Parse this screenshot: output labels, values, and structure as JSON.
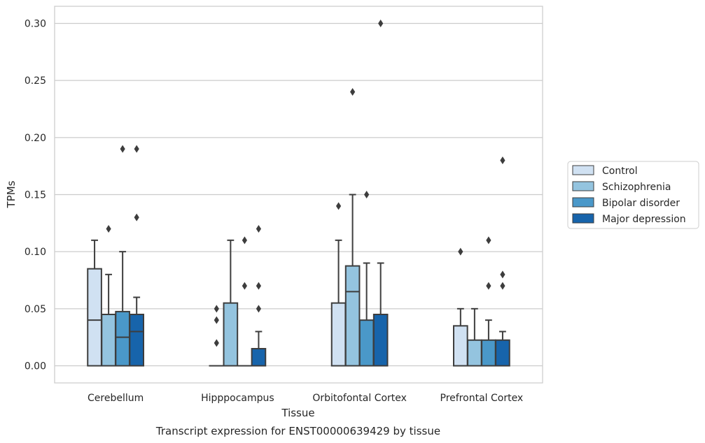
{
  "chart_data": {
    "type": "box",
    "title": "Transcript expression for ENST00000639429 by tissue",
    "xlabel": "Tissue",
    "ylabel": "TPMs",
    "ylim": [
      -0.015,
      0.315
    ],
    "yticks": [
      0.0,
      0.05,
      0.1,
      0.15,
      0.2,
      0.25,
      0.3
    ],
    "ytick_labels": [
      "0.00",
      "0.05",
      "0.10",
      "0.15",
      "0.20",
      "0.25",
      "0.30"
    ],
    "categories": [
      "Cerebellum",
      "Hipppocampus",
      "Orbitofontal Cortex",
      "Prefrontal Cortex"
    ],
    "grid": "horizontal",
    "legend_position": "right-center",
    "series": [
      {
        "name": "Control",
        "color": "#d0e1f2",
        "boxes": [
          {
            "q1": 0.0,
            "median": 0.04,
            "q3": 0.085,
            "whislo": 0.0,
            "whishi": 0.11,
            "fliers": []
          },
          {
            "q1": 0.0,
            "median": 0.0,
            "q3": 0.0,
            "whislo": 0.0,
            "whishi": 0.0,
            "fliers": [
              0.02,
              0.04,
              0.05
            ]
          },
          {
            "q1": 0.0,
            "median": 0.0,
            "q3": 0.055,
            "whislo": 0.0,
            "whishi": 0.11,
            "fliers": [
              0.14
            ]
          },
          {
            "q1": 0.0,
            "median": 0.0,
            "q3": 0.035,
            "whislo": 0.0,
            "whishi": 0.05,
            "fliers": [
              0.1
            ]
          }
        ]
      },
      {
        "name": "Schizophrenia",
        "color": "#94c4df",
        "boxes": [
          {
            "q1": 0.0,
            "median": 0.0,
            "q3": 0.045,
            "whislo": 0.0,
            "whishi": 0.08,
            "fliers": [
              0.12
            ]
          },
          {
            "q1": 0.0,
            "median": 0.0,
            "q3": 0.055,
            "whislo": 0.0,
            "whishi": 0.11,
            "fliers": []
          },
          {
            "q1": 0.0,
            "median": 0.065,
            "q3": 0.0875,
            "whislo": 0.0,
            "whishi": 0.15,
            "fliers": [
              0.24
            ]
          },
          {
            "q1": 0.0,
            "median": 0.0,
            "q3": 0.0225,
            "whislo": 0.0,
            "whishi": 0.05,
            "fliers": []
          }
        ]
      },
      {
        "name": "Bipolar disorder",
        "color": "#4a98c9",
        "boxes": [
          {
            "q1": 0.0,
            "median": 0.025,
            "q3": 0.0475,
            "whislo": 0.0,
            "whishi": 0.1,
            "fliers": [
              0.19
            ]
          },
          {
            "q1": 0.0,
            "median": 0.0,
            "q3": 0.0,
            "whislo": 0.0,
            "whishi": 0.0,
            "fliers": [
              0.07,
              0.11
            ]
          },
          {
            "q1": 0.0,
            "median": 0.0,
            "q3": 0.04,
            "whislo": 0.0,
            "whishi": 0.09,
            "fliers": [
              0.15
            ]
          },
          {
            "q1": 0.0,
            "median": 0.0,
            "q3": 0.0225,
            "whislo": 0.0,
            "whishi": 0.04,
            "fliers": [
              0.07,
              0.11
            ]
          }
        ]
      },
      {
        "name": "Major depression",
        "color": "#1764ab",
        "boxes": [
          {
            "q1": 0.0,
            "median": 0.03,
            "q3": 0.045,
            "whislo": 0.0,
            "whishi": 0.06,
            "fliers": [
              0.13,
              0.19
            ]
          },
          {
            "q1": 0.0,
            "median": 0.0,
            "q3": 0.015,
            "whislo": 0.0,
            "whishi": 0.03,
            "fliers": [
              0.05,
              0.07,
              0.12
            ]
          },
          {
            "q1": 0.0,
            "median": 0.0,
            "q3": 0.045,
            "whislo": 0.0,
            "whishi": 0.09,
            "fliers": [
              0.3
            ]
          },
          {
            "q1": 0.0,
            "median": 0.0,
            "q3": 0.0225,
            "whislo": 0.0,
            "whishi": 0.03,
            "fliers": [
              0.07,
              0.08,
              0.18
            ]
          }
        ]
      }
    ]
  }
}
